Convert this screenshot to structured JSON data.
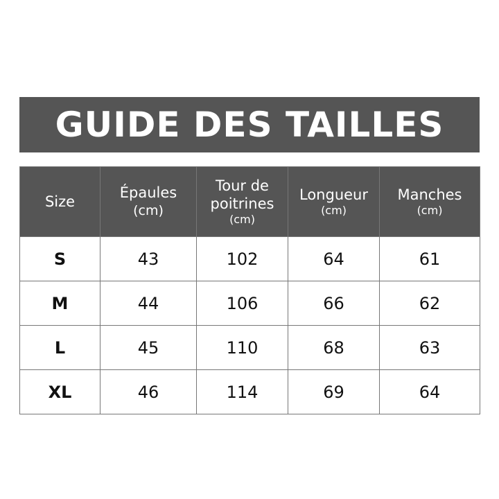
{
  "title": "GUIDE DES TAILLES",
  "colors": {
    "header_bg": "#555555",
    "header_text": "#ffffff",
    "border": "#777777"
  },
  "columns": [
    {
      "label": "Size",
      "unit": ""
    },
    {
      "label": "Épaules",
      "unit": "(cm)"
    },
    {
      "label": "Tour de poitrines",
      "unit": "(cm)"
    },
    {
      "label": "Longueur",
      "unit": "(cm)"
    },
    {
      "label": "Manches",
      "unit": "(cm)"
    }
  ],
  "rows": [
    [
      "S",
      "43",
      "102",
      "64",
      "61"
    ],
    [
      "M",
      "44",
      "106",
      "66",
      "62"
    ],
    [
      "L",
      "45",
      "110",
      "68",
      "63"
    ],
    [
      "XL",
      "46",
      "114",
      "69",
      "64"
    ]
  ]
}
